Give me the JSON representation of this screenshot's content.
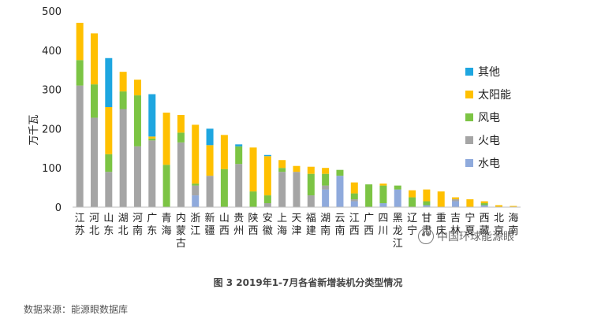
{
  "chart_data": {
    "type": "bar",
    "stacked": true,
    "ylabel": "万千瓦",
    "ylim": [
      0,
      500
    ],
    "yticks": [
      "0",
      "100",
      "200",
      "300",
      "400",
      "500"
    ],
    "categories": [
      "江苏",
      "河北",
      "山东",
      "湖北",
      "河南",
      "广东",
      "青海",
      "内蒙古",
      "浙江",
      "新疆",
      "山西",
      "贵州",
      "陕西",
      "安徽",
      "上海",
      "天津",
      "福建",
      "湖南",
      "云南",
      "江西",
      "广西",
      "四川",
      "黑龙江",
      "辽宁",
      "甘肃",
      "重庆",
      "吉林",
      "宁夏",
      "西藏",
      "北京",
      "海南"
    ],
    "series": [
      {
        "name": "水电",
        "color": "#8faadc",
        "values": [
          0,
          0,
          0,
          0,
          0,
          0,
          0,
          0,
          30,
          0,
          0,
          0,
          0,
          0,
          0,
          0,
          0,
          45,
          80,
          15,
          0,
          10,
          45,
          0,
          5,
          0,
          15,
          0,
          5,
          0,
          0
        ]
      },
      {
        "name": "火电",
        "color": "#a5a5a5",
        "values": [
          310,
          228,
          90,
          250,
          155,
          170,
          0,
          165,
          25,
          80,
          0,
          110,
          0,
          10,
          90,
          90,
          30,
          10,
          0,
          5,
          0,
          0,
          0,
          0,
          0,
          0,
          5,
          0,
          0,
          0,
          0
        ]
      },
      {
        "name": "风电",
        "color": "#7cc444",
        "values": [
          65,
          85,
          45,
          45,
          130,
          5,
          108,
          25,
          5,
          0,
          97,
          45,
          40,
          20,
          10,
          0,
          55,
          30,
          15,
          15,
          58,
          45,
          10,
          25,
          10,
          0,
          0,
          0,
          5,
          0,
          0
        ]
      },
      {
        "name": "太阳能",
        "color": "#ffc000",
        "values": [
          95,
          130,
          120,
          50,
          40,
          5,
          133,
          45,
          150,
          78,
          87,
          0,
          112,
          100,
          20,
          15,
          18,
          15,
          0,
          28,
          0,
          5,
          0,
          18,
          30,
          40,
          5,
          20,
          5,
          5,
          3
        ]
      },
      {
        "name": "其他",
        "color": "#1ea6e0",
        "values": [
          0,
          0,
          125,
          0,
          0,
          108,
          0,
          0,
          0,
          42,
          0,
          5,
          0,
          3,
          0,
          0,
          0,
          0,
          0,
          0,
          0,
          0,
          0,
          0,
          0,
          0,
          0,
          0,
          0,
          0,
          0
        ]
      }
    ],
    "legend": {
      "position": "right",
      "order": [
        "其他",
        "太阳能",
        "风电",
        "火电",
        "水电"
      ]
    },
    "caption": "图 3  2019年1-7月各省新增装机分类型情况",
    "grid": false
  },
  "source": "数据来源：能源眼数据库",
  "watermark": "中国环球能源眼"
}
